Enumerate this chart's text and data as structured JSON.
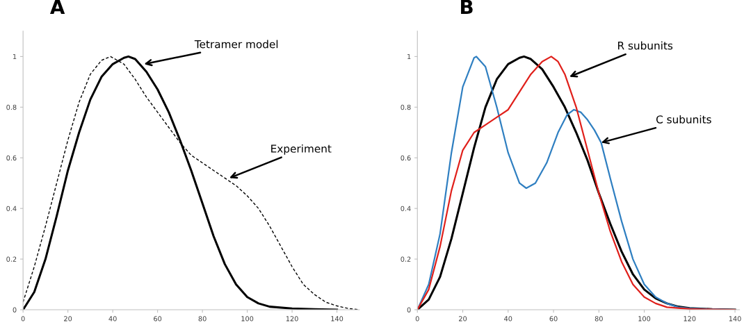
{
  "chart_data": [
    {
      "type": "line",
      "title": "A",
      "xlim": [
        0,
        150
      ],
      "xticks": [
        0,
        20,
        40,
        60,
        80,
        100,
        120,
        140
      ],
      "ylim": [
        0,
        1.1
      ],
      "yticks": [
        0,
        0.2,
        0.4,
        0.6,
        0.8,
        1
      ],
      "grid": false,
      "marker": "none",
      "annotations": [
        {
          "text": "Tetramer model",
          "x": 54,
          "y": 0.97
        },
        {
          "text": "Experiment",
          "x": 92,
          "y": 0.52
        }
      ],
      "series": [
        {
          "color": "#000000",
          "line_style": "solid",
          "x": [
            0,
            5,
            10,
            15,
            20,
            25,
            30,
            35,
            40,
            45,
            47,
            50,
            55,
            60,
            65,
            70,
            75,
            80,
            85,
            90,
            95,
            100,
            105,
            110,
            120,
            130,
            140
          ],
          "values": [
            0,
            0.07,
            0.2,
            0.37,
            0.55,
            0.7,
            0.83,
            0.92,
            0.97,
            0.995,
            1.0,
            0.99,
            0.94,
            0.87,
            0.78,
            0.67,
            0.55,
            0.42,
            0.29,
            0.18,
            0.1,
            0.05,
            0.025,
            0.012,
            0.005,
            0.002,
            0
          ]
        },
        {
          "color": "#000000",
          "line_style": "dashed",
          "x": [
            0,
            5,
            10,
            15,
            20,
            25,
            30,
            35,
            39,
            45,
            50,
            55,
            60,
            65,
            70,
            75,
            80,
            85,
            90,
            95,
            100,
            105,
            110,
            115,
            120,
            125,
            130,
            135,
            140,
            145,
            150
          ],
          "values": [
            0.03,
            0.17,
            0.33,
            0.5,
            0.67,
            0.82,
            0.93,
            0.985,
            1.0,
            0.97,
            0.91,
            0.84,
            0.78,
            0.72,
            0.66,
            0.61,
            0.58,
            0.55,
            0.52,
            0.49,
            0.45,
            0.4,
            0.33,
            0.25,
            0.17,
            0.1,
            0.06,
            0.03,
            0.015,
            0.005,
            0
          ]
        }
      ]
    },
    {
      "type": "line",
      "title": "B",
      "xlim": [
        0,
        142
      ],
      "xticks": [
        0,
        20,
        40,
        60,
        80,
        100,
        120,
        140
      ],
      "ylim": [
        0,
        1.1
      ],
      "yticks": [
        0,
        0.2,
        0.4,
        0.6,
        0.8,
        1
      ],
      "grid": false,
      "marker": "none",
      "annotations": [
        {
          "text": "R subunits",
          "x": 67,
          "y": 0.92
        },
        {
          "text": "C subunits",
          "x": 81,
          "y": 0.66
        }
      ],
      "series": [
        {
          "color": "#000000",
          "line_style": "solid",
          "x": [
            0,
            5,
            10,
            15,
            20,
            25,
            30,
            35,
            40,
            45,
            47,
            50,
            55,
            60,
            65,
            70,
            75,
            80,
            85,
            90,
            95,
            100,
            105,
            110,
            115,
            120,
            130,
            140
          ],
          "values": [
            0,
            0.04,
            0.13,
            0.28,
            0.46,
            0.64,
            0.8,
            0.91,
            0.97,
            0.995,
            1.0,
            0.99,
            0.95,
            0.88,
            0.8,
            0.7,
            0.59,
            0.46,
            0.34,
            0.23,
            0.14,
            0.08,
            0.045,
            0.025,
            0.012,
            0.006,
            0.002,
            0
          ]
        },
        {
          "color": "#2f7fc1",
          "line_style": "solid",
          "x": [
            0,
            5,
            10,
            15,
            20,
            25,
            26,
            30,
            35,
            40,
            45,
            48,
            52,
            57,
            62,
            66,
            69,
            72,
            75,
            78,
            81,
            85,
            90,
            95,
            100,
            105,
            110,
            115,
            120,
            130,
            140
          ],
          "values": [
            0,
            0.1,
            0.3,
            0.62,
            0.88,
            0.995,
            1.0,
            0.96,
            0.8,
            0.62,
            0.5,
            0.48,
            0.5,
            0.58,
            0.7,
            0.77,
            0.79,
            0.78,
            0.75,
            0.71,
            0.66,
            0.52,
            0.35,
            0.2,
            0.1,
            0.05,
            0.025,
            0.01,
            0.005,
            0.002,
            0
          ]
        },
        {
          "color": "#e0201b",
          "line_style": "solid",
          "x": [
            0,
            5,
            10,
            15,
            20,
            25,
            30,
            35,
            40,
            45,
            50,
            55,
            59,
            62,
            65,
            70,
            75,
            80,
            85,
            90,
            95,
            100,
            105,
            110,
            120,
            130,
            140
          ],
          "values": [
            0,
            0.08,
            0.25,
            0.47,
            0.63,
            0.7,
            0.73,
            0.76,
            0.79,
            0.86,
            0.93,
            0.98,
            1.0,
            0.98,
            0.93,
            0.8,
            0.63,
            0.46,
            0.31,
            0.19,
            0.1,
            0.05,
            0.025,
            0.01,
            0.003,
            0.001,
            0
          ]
        }
      ]
    }
  ]
}
